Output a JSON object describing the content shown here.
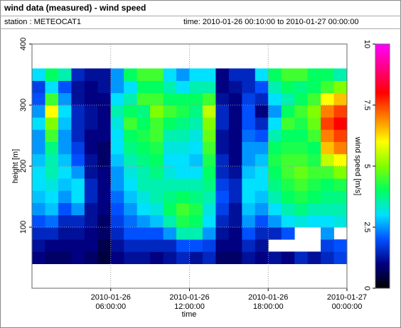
{
  "chart_data": {
    "type": "heatmap",
    "title": "wind data (measured) - wind speed",
    "station": "station : METEOCAT1",
    "time_range": "time: 2010-01-26 00:10:00 to 2010-01-27 00:00:00",
    "x_label": "time",
    "y_label": "height [m]",
    "colorbar_label": "wind speed [m/s]",
    "xlim": [
      0,
      24
    ],
    "xticks": [
      {
        "value": 6,
        "label": "2010-01-26 06:00:00"
      },
      {
        "value": 12,
        "label": "2010-01-26 12:00:00"
      },
      {
        "value": 18,
        "label": "2010-01-26 18:00:00"
      },
      {
        "value": 24,
        "label": "2010-01-27 00:00:00"
      }
    ],
    "ylim": [
      0,
      400
    ],
    "yticks": [
      100,
      200,
      300,
      400
    ],
    "x_bins": [
      0,
      1,
      2,
      3,
      4,
      5,
      6,
      7,
      8,
      9,
      10,
      11,
      12,
      13,
      14,
      15,
      16,
      17,
      18,
      19,
      20,
      21,
      22,
      23,
      24
    ],
    "y_bins": [
      40,
      60,
      80,
      100,
      120,
      140,
      160,
      180,
      200,
      220,
      240,
      260,
      280,
      300,
      320,
      340,
      360
    ],
    "values": [
      [
        1.0,
        1.2,
        1.5,
        2.0,
        2.5,
        2.8,
        3.0,
        3.0,
        2.8,
        2.5,
        2.5,
        3.0,
        2.5,
        2.0,
        1.8,
        3.0
      ],
      [
        0.8,
        1.0,
        1.5,
        2.2,
        2.8,
        3.0,
        3.2,
        3.5,
        3.5,
        3.8,
        4.5,
        5.0,
        6.0,
        4.5,
        3.0,
        4.0
      ],
      [
        0.8,
        1.0,
        1.2,
        1.5,
        2.0,
        2.5,
        2.8,
        3.0,
        2.8,
        2.5,
        2.5,
        2.8,
        3.0,
        2.5,
        2.0,
        3.5
      ],
      [
        1.0,
        1.0,
        1.2,
        1.5,
        2.5,
        3.0,
        3.0,
        2.5,
        2.0,
        1.8,
        1.5,
        1.5,
        1.5,
        1.2,
        1.2,
        1.5
      ],
      [
        0.8,
        1.0,
        1.0,
        1.2,
        1.2,
        1.5,
        1.5,
        1.2,
        1.2,
        1.0,
        1.0,
        1.2,
        1.2,
        1.0,
        1.0,
        1.2
      ],
      [
        0.5,
        0.6,
        0.8,
        0.8,
        1.0,
        1.0,
        1.0,
        1.0,
        0.8,
        0.8,
        1.0,
        1.0,
        1.0,
        1.0,
        1.2,
        1.2
      ],
      [
        1.0,
        1.2,
        1.5,
        1.8,
        2.0,
        2.2,
        2.5,
        2.5,
        2.8,
        3.0,
        3.0,
        3.2,
        3.5,
        3.0,
        2.5,
        2.5
      ],
      [
        1.2,
        1.5,
        2.0,
        2.2,
        2.5,
        2.8,
        3.0,
        3.2,
        3.5,
        3.8,
        4.0,
        4.5,
        4.0,
        3.5,
        3.0,
        4.0
      ],
      [
        1.2,
        1.5,
        2.0,
        2.5,
        3.0,
        3.2,
        3.5,
        3.5,
        3.8,
        4.0,
        4.2,
        4.0,
        3.8,
        4.5,
        4.0,
        4.5
      ],
      [
        1.0,
        1.5,
        2.0,
        2.8,
        3.2,
        3.5,
        3.5,
        3.8,
        4.0,
        4.2,
        4.5,
        4.5,
        5.0,
        4.5,
        4.0,
        4.5
      ],
      [
        1.2,
        1.5,
        2.5,
        3.5,
        4.0,
        3.8,
        3.5,
        3.2,
        3.0,
        3.2,
        3.5,
        4.0,
        4.5,
        4.0,
        3.5,
        3.0
      ],
      [
        1.5,
        2.0,
        3.5,
        4.2,
        4.5,
        4.0,
        3.5,
        3.0,
        3.0,
        3.2,
        3.5,
        3.8,
        4.2,
        4.0,
        3.0,
        2.5
      ],
      [
        1.2,
        2.0,
        3.5,
        4.0,
        4.2,
        3.8,
        3.5,
        3.0,
        2.8,
        3.0,
        3.2,
        3.5,
        3.8,
        4.0,
        3.5,
        3.0
      ],
      [
        1.5,
        1.8,
        2.5,
        3.0,
        3.2,
        3.5,
        3.8,
        4.0,
        4.2,
        4.5,
        4.8,
        5.0,
        5.5,
        4.5,
        3.5,
        3.0
      ],
      [
        0.8,
        1.0,
        1.2,
        1.5,
        1.8,
        2.0,
        1.8,
        1.5,
        1.5,
        1.2,
        1.2,
        1.5,
        1.5,
        1.2,
        1.0,
        1.0
      ],
      [
        0.8,
        1.0,
        1.0,
        1.2,
        1.2,
        1.5,
        1.5,
        1.2,
        1.0,
        1.0,
        1.0,
        1.0,
        1.0,
        1.0,
        1.2,
        1.5
      ],
      [
        1.2,
        1.5,
        2.0,
        2.5,
        2.8,
        3.0,
        3.0,
        2.8,
        2.5,
        2.5,
        2.2,
        2.0,
        2.0,
        1.8,
        1.5,
        1.5
      ],
      [
        1.0,
        1.2,
        1.5,
        2.0,
        2.5,
        2.8,
        3.0,
        3.0,
        2.8,
        2.5,
        2.0,
        1.5,
        1.0,
        1.5,
        2.0,
        3.0
      ],
      [
        1.2,
        null,
        1.5,
        2.5,
        3.0,
        3.5,
        3.8,
        4.0,
        4.2,
        4.0,
        3.5,
        3.0,
        2.5,
        3.0,
        3.5,
        4.0
      ],
      [
        1.0,
        null,
        2.0,
        3.0,
        3.5,
        4.0,
        4.2,
        4.5,
        4.5,
        4.2,
        4.0,
        4.5,
        4.0,
        3.5,
        4.0,
        4.5
      ],
      [
        1.5,
        null,
        null,
        3.2,
        3.8,
        4.2,
        4.5,
        4.8,
        4.5,
        4.2,
        4.0,
        4.2,
        4.5,
        4.0,
        3.8,
        4.5
      ],
      [
        1.2,
        null,
        null,
        3.0,
        3.5,
        4.0,
        4.2,
        4.5,
        4.2,
        4.0,
        4.5,
        4.8,
        5.0,
        4.5,
        4.0,
        4.0
      ],
      [
        1.5,
        1.8,
        2.5,
        3.0,
        3.5,
        3.8,
        4.0,
        4.5,
        5.5,
        6.5,
        7.0,
        7.5,
        7.0,
        6.0,
        4.5,
        4.0
      ],
      [
        1.8,
        2.0,
        null,
        3.2,
        3.5,
        3.8,
        4.2,
        5.0,
        6.0,
        7.0,
        7.5,
        8.0,
        7.5,
        6.5,
        5.0,
        3.5
      ]
    ],
    "clim": [
      0,
      10
    ],
    "cticks": [
      0,
      2.5,
      5,
      7.5,
      10
    ],
    "colorscale": [
      [
        0,
        "#000000"
      ],
      [
        1,
        "#000080"
      ],
      [
        2,
        "#0050ff"
      ],
      [
        3,
        "#00e0ff"
      ],
      [
        4,
        "#00ff60"
      ],
      [
        5,
        "#80ff00"
      ],
      [
        6,
        "#ffff00"
      ],
      [
        7,
        "#ff8000"
      ],
      [
        8,
        "#ff0000"
      ],
      [
        9,
        "#ff0080"
      ],
      [
        10,
        "#ff00ff"
      ]
    ],
    "grid": true
  }
}
